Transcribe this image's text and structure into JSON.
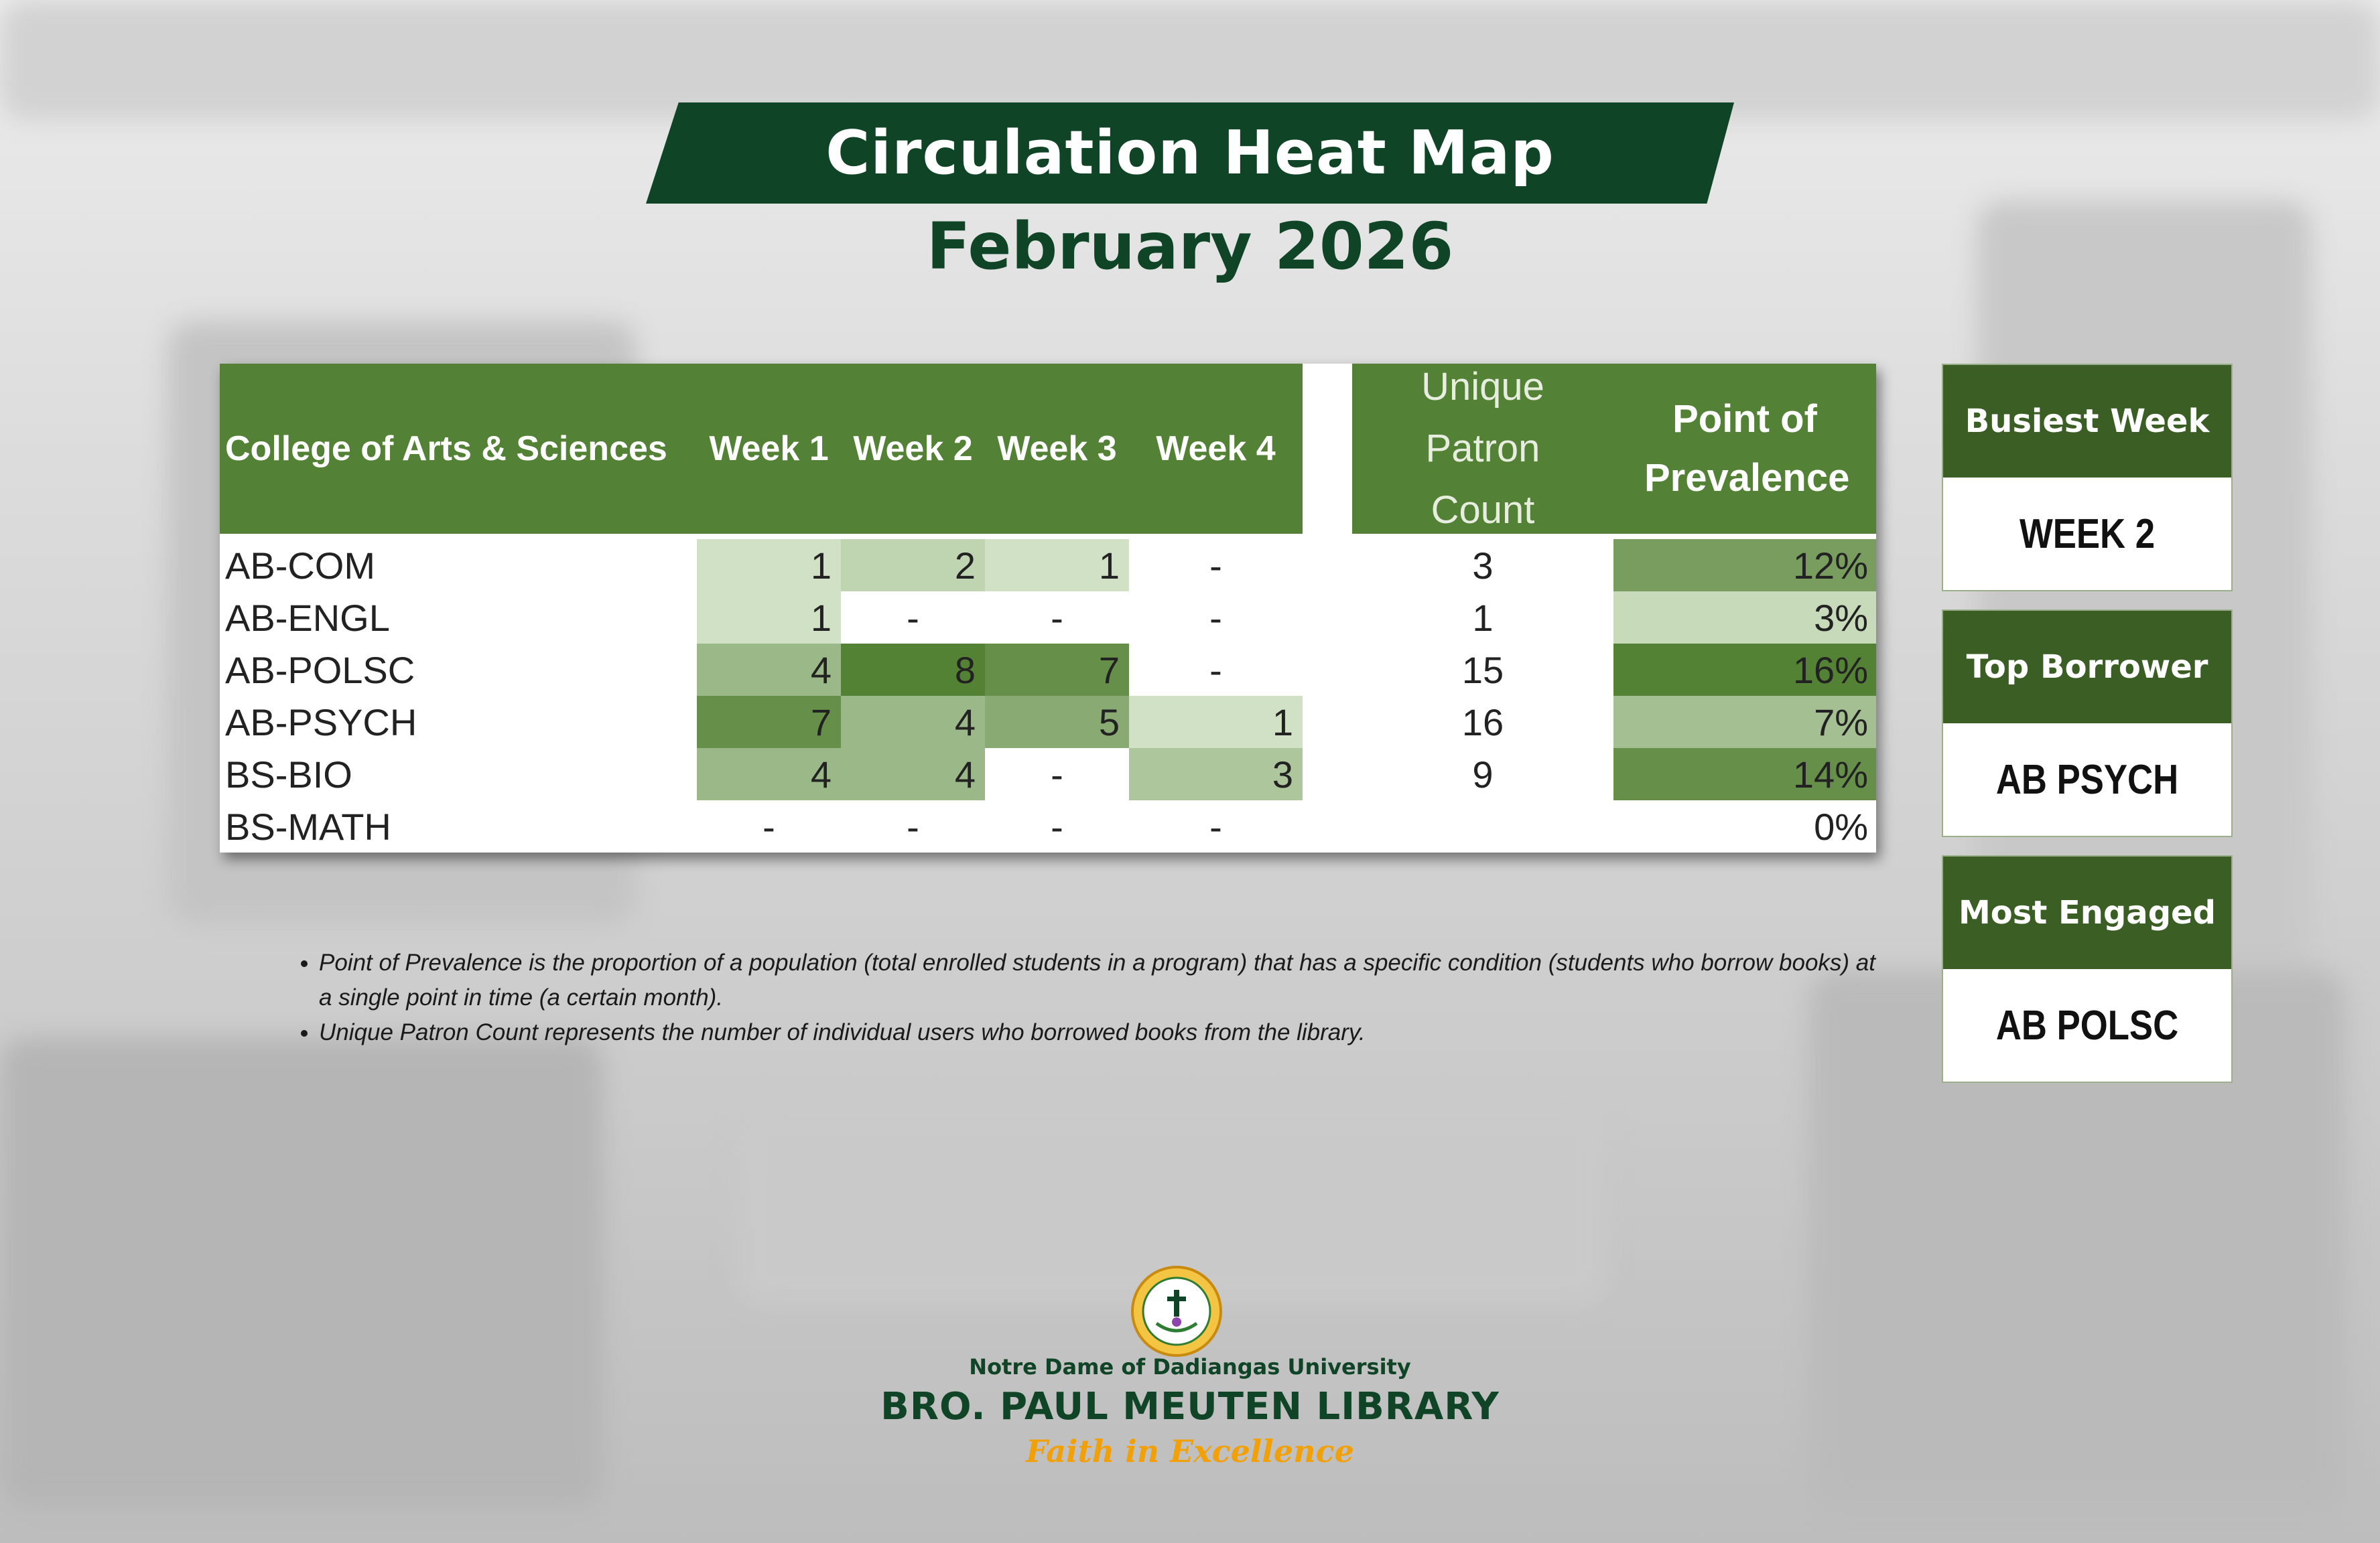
{
  "title": "Circulation Heat Map",
  "subtitle": "February 2026",
  "chart_data": {
    "type": "heatmap",
    "row_header": "College of Arts & Sciences",
    "columns": [
      "Week 1",
      "Week 2",
      "Week 3",
      "Week 4"
    ],
    "summary_columns": [
      "Unique Patron Count",
      "Point of Prevalence"
    ],
    "rows": [
      {
        "program": "AB-COM",
        "weeks": [
          "1",
          "2",
          "1",
          "-"
        ],
        "unique_patron_count": "3",
        "point_of_prevalence": "12%"
      },
      {
        "program": "AB-ENGL",
        "weeks": [
          "1",
          "-",
          "-",
          "-"
        ],
        "unique_patron_count": "1",
        "point_of_prevalence": "3%"
      },
      {
        "program": "AB-POLSC",
        "weeks": [
          "4",
          "8",
          "7",
          "-"
        ],
        "unique_patron_count": "15",
        "point_of_prevalence": "16%"
      },
      {
        "program": "AB-PSYCH",
        "weeks": [
          "7",
          "4",
          "5",
          "1"
        ],
        "unique_patron_count": "16",
        "point_of_prevalence": "7%"
      },
      {
        "program": "BS-BIO",
        "weeks": [
          "4",
          "4",
          "-",
          "3"
        ],
        "unique_patron_count": "9",
        "point_of_prevalence": "14%"
      },
      {
        "program": "BS-MATH",
        "weeks": [
          "-",
          "-",
          "-",
          "-"
        ],
        "unique_patron_count": "",
        "point_of_prevalence": "0%"
      }
    ],
    "colors": {
      "header": "#538135",
      "low": "#e2efda",
      "high": "#548235",
      "text_dark": "#222222"
    }
  },
  "notes": [
    "Point of Prevalence is the proportion of a population (total enrolled students in a program) that has a specific condition (students who borrow books) at a single point in time (a certain month).",
    "Unique Patron Count represents the number of individual users who borrowed books from the library."
  ],
  "highlights": [
    {
      "label": "Busiest Week",
      "value": "WEEK 2"
    },
    {
      "label": "Top Borrower",
      "value": "AB PSYCH"
    },
    {
      "label": "Most Engaged",
      "value": "AB POLSC"
    }
  ],
  "footer": {
    "university": "Notre Dame of Dadiangas University",
    "library": "BRO. PAUL MEUTEN LIBRARY",
    "motto": "Faith in Excellence",
    "seal_icon": "university-seal-icon"
  },
  "theme": {
    "brand_green": "#0f4526",
    "accent_orange": "#f2a007"
  }
}
